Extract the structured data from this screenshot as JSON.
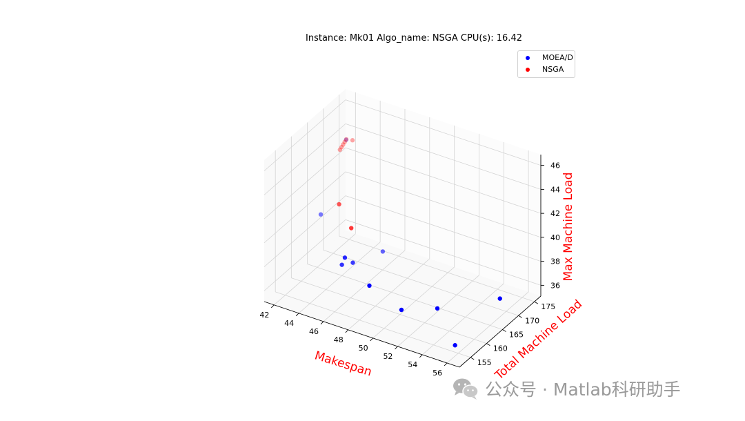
{
  "watermark": {
    "text": "公众号 · Matlab科研助手",
    "icon": "wechat-icon"
  },
  "chart_data": {
    "type": "scatter",
    "title": "Instance: Mk01 Algo_name: NSGA CPU(s): 16.42",
    "xlabel": "Makespan",
    "ylabel": "Total Machine Load",
    "zlabel": "Max Machine Load",
    "axis_label_color": "#ff0000",
    "xlim": [
      41.2,
      57.0
    ],
    "ylim": [
      151.5,
      177.0
    ],
    "zlim": [
      35.1,
      46.9
    ],
    "xticks": [
      "42",
      "44",
      "46",
      "48",
      "50",
      "52",
      "54",
      "56"
    ],
    "yticks": [
      "155",
      "160",
      "165",
      "170",
      "175"
    ],
    "zticks": [
      "36",
      "38",
      "40",
      "42",
      "44",
      "46"
    ],
    "grid": true,
    "legend_position": "top-right",
    "series": [
      {
        "name": "MOEA/D",
        "color": "#0000ff",
        "points": [
          {
            "x": 56.0,
            "y": 154.0,
            "z": 36.0
          },
          {
            "x": 50.5,
            "y": 158.5,
            "z": 36.0
          },
          {
            "x": 47.0,
            "y": 162.0,
            "z": 36.0
          },
          {
            "x": 52.5,
            "y": 162.0,
            "z": 36.0
          },
          {
            "x": 44.0,
            "y": 165.0,
            "z": 36.0
          },
          {
            "x": 44.5,
            "y": 164.0,
            "z": 37.0
          },
          {
            "x": 44.5,
            "y": 166.5,
            "z": 36.0
          },
          {
            "x": 41.0,
            "y": 170.0,
            "z": 38.0
          },
          {
            "x": 45.5,
            "y": 172.0,
            "z": 36.0
          },
          {
            "x": 55.5,
            "y": 170.0,
            "z": 36.0
          },
          {
            "x": 41.5,
            "y": 176.0,
            "z": 43.0
          }
        ]
      },
      {
        "name": "NSGA",
        "color": "#ff0000",
        "points": [
          {
            "x": 41.0,
            "y": 176.0,
            "z": 42.0
          },
          {
            "x": 41.0,
            "y": 176.5,
            "z": 42.1
          },
          {
            "x": 41.0,
            "y": 177.0,
            "z": 42.2
          },
          {
            "x": 41.0,
            "y": 177.5,
            "z": 42.3
          },
          {
            "x": 41.0,
            "y": 178.0,
            "z": 42.4
          },
          {
            "x": 41.5,
            "y": 178.0,
            "z": 42.5
          },
          {
            "x": 43.0,
            "y": 168.0,
            "z": 40.0
          },
          {
            "x": 44.5,
            "y": 166.0,
            "z": 39.0
          }
        ]
      }
    ]
  }
}
